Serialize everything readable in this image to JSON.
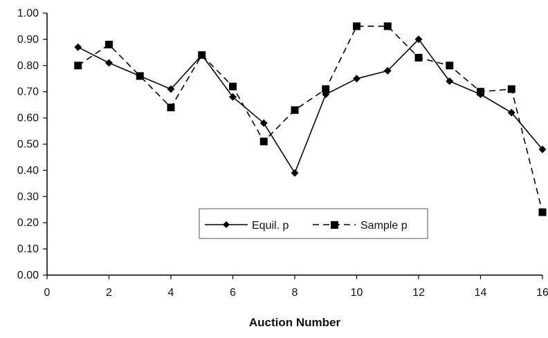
{
  "chart_data": {
    "type": "line",
    "title": "",
    "xlabel": "Auction Number",
    "ylabel": "",
    "xlim": [
      0,
      16
    ],
    "ylim": [
      0,
      1
    ],
    "x_ticks": [
      "0",
      "2",
      "4",
      "6",
      "8",
      "10",
      "12",
      "14",
      "16"
    ],
    "y_ticks": [
      "0.00",
      "0.10",
      "0.20",
      "0.30",
      "0.40",
      "0.50",
      "0.60",
      "0.70",
      "0.80",
      "0.90",
      "1.00"
    ],
    "grid": false,
    "legend_position": "bottom-center",
    "x": [
      1,
      2,
      3,
      4,
      5,
      6,
      7,
      8,
      9,
      10,
      11,
      12,
      13,
      14,
      15,
      16
    ],
    "series": [
      {
        "name": "Equil. p",
        "marker": "diamond",
        "line_style": "solid",
        "color": "#000000",
        "values": [
          0.87,
          0.81,
          0.76,
          0.71,
          0.84,
          0.68,
          0.58,
          0.39,
          0.69,
          0.75,
          0.78,
          0.9,
          0.74,
          0.69,
          0.62,
          0.48
        ]
      },
      {
        "name": "Sample p",
        "marker": "square",
        "line_style": "dashed",
        "color": "#000000",
        "values": [
          0.8,
          0.88,
          0.76,
          0.64,
          0.84,
          0.72,
          0.51,
          0.63,
          0.71,
          0.95,
          0.95,
          0.83,
          0.8,
          0.7,
          0.71,
          0.24
        ]
      }
    ]
  }
}
